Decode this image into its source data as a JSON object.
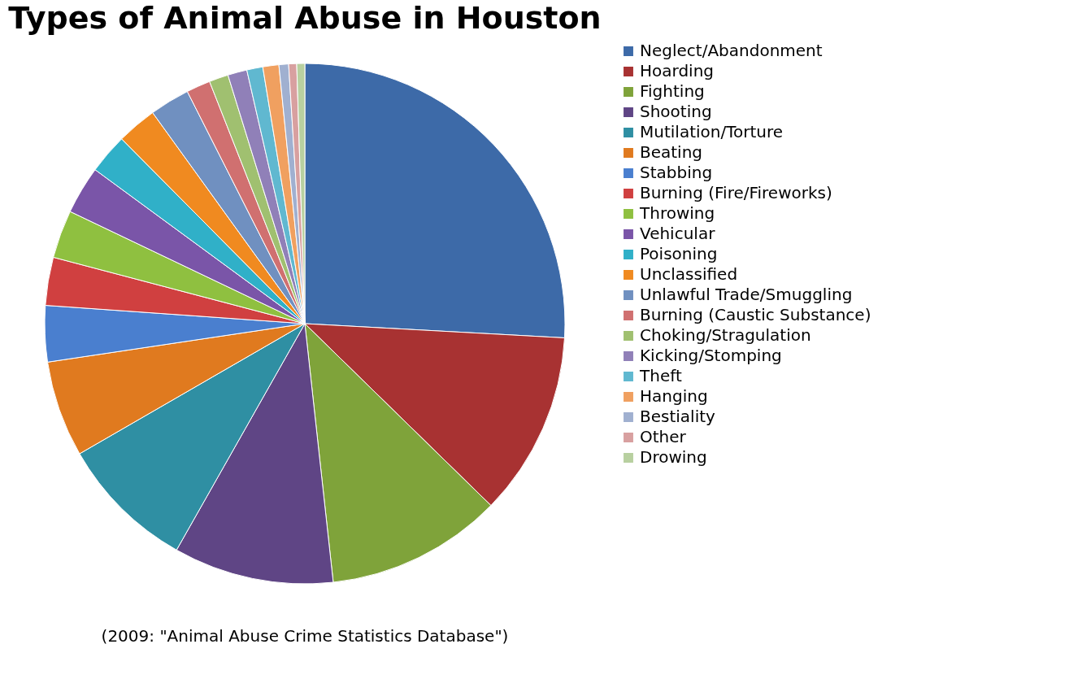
{
  "chart_data": {
    "type": "pie",
    "title": "Types of Animal Abuse in Houston",
    "categories": [
      "Neglect/Abandonment",
      "Hoarding",
      "Fighting",
      "Shooting",
      "Mutilation/Torture",
      "Beating",
      "Stabbing",
      "Burning (Fire/Fireworks)",
      "Throwing",
      "Vehicular",
      "Poisoning",
      "Unclassified",
      "Unlawful Trade/Smuggling",
      "Burning (Caustic Substance)",
      "Choking/Stragulation",
      "Kicking/Stomping",
      "Theft",
      "Hanging",
      "Bestiality",
      "Other",
      "Drowing"
    ],
    "values": [
      26,
      11.5,
      11,
      10,
      8.5,
      6,
      3.5,
      3,
      3,
      3,
      2.5,
      2.5,
      2.5,
      1.5,
      1.2,
      1.2,
      1,
      1,
      0.6,
      0.5,
      0.5
    ],
    "colors": [
      "#3d6aa8",
      "#a83232",
      "#7fa33a",
      "#5f4585",
      "#2f8fa3",
      "#e07a1f",
      "#4a7fcf",
      "#d04040",
      "#8fc040",
      "#7a55a8",
      "#30b0c8",
      "#f08a20",
      "#7090c0",
      "#d07070",
      "#a0c070",
      "#9080b8",
      "#60b8d0",
      "#f0a060",
      "#a0b0d0",
      "#d8a0a0",
      "#b8d0a0"
    ],
    "legend": "right",
    "annotations": [
      "(2009: \"Animal Abuse Crime Statistics Database\")"
    ]
  }
}
